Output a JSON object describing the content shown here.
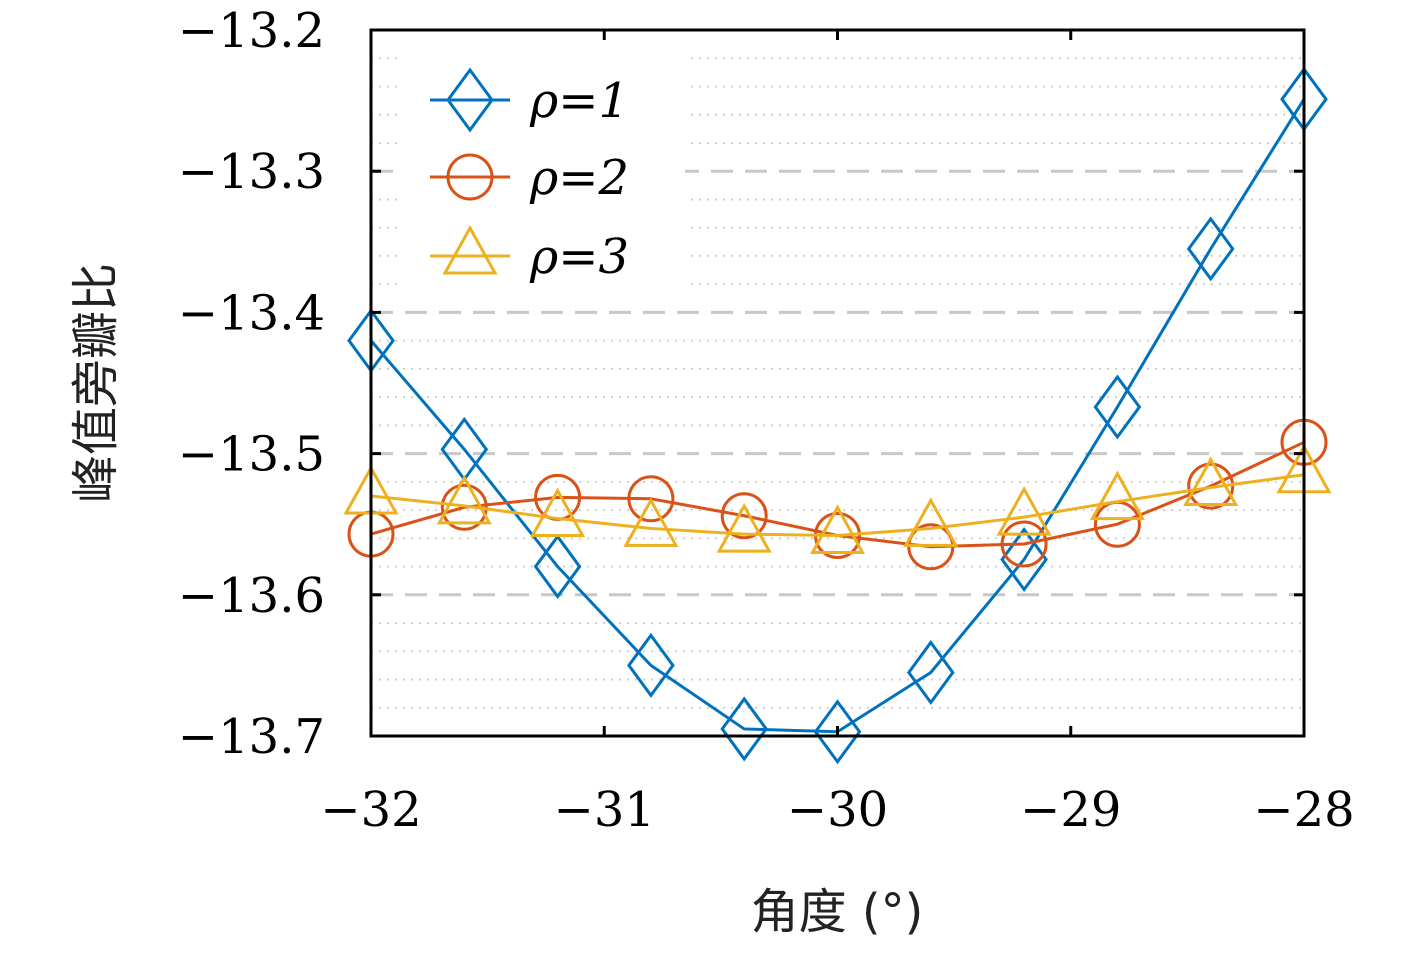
{
  "chart_data": {
    "type": "line",
    "xlabel": "角度 (°)",
    "ylabel": "峰值旁瓣比",
    "xlim": [
      -32,
      -28
    ],
    "ylim": [
      -13.7,
      -13.2
    ],
    "x_ticks": [
      -32,
      -31,
      -30,
      -29,
      -28
    ],
    "x_tick_labels": [
      "−32",
      "−31",
      "−30",
      "−29",
      "−28"
    ],
    "y_ticks": [
      -13.2,
      -13.3,
      -13.4,
      -13.5,
      -13.6,
      -13.7
    ],
    "y_tick_labels": [
      "−13.2",
      "−13.3",
      "−13.4",
      "−13.5",
      "−13.6",
      "−13.7"
    ],
    "grid": {
      "major": "dashed",
      "minor": "dotted"
    },
    "legend_position": "top-left",
    "x": [
      -32,
      -31.6,
      -31.2,
      -30.8,
      -30.4,
      -30,
      -29.6,
      -29.2,
      -28.8,
      -28.4,
      -28
    ],
    "series": [
      {
        "name": "ρ=1",
        "color": "#0072BD",
        "marker": "diamond",
        "values": [
          -13.42,
          -13.497,
          -13.58,
          -13.65,
          -13.695,
          -13.697,
          -13.655,
          -13.575,
          -13.467,
          -13.355,
          -13.249
        ]
      },
      {
        "name": "ρ=2",
        "color": "#D95319",
        "marker": "circle",
        "values": [
          -13.557,
          -13.538,
          -13.531,
          -13.532,
          -13.544,
          -13.558,
          -13.566,
          -13.564,
          -13.55,
          -13.523,
          -13.492
        ]
      },
      {
        "name": "ρ=3",
        "color": "#EDB120",
        "marker": "triangle",
        "values": [
          -13.53,
          -13.537,
          -13.546,
          -13.553,
          -13.557,
          -13.558,
          -13.553,
          -13.545,
          -13.534,
          -13.524,
          -13.515
        ]
      }
    ]
  }
}
